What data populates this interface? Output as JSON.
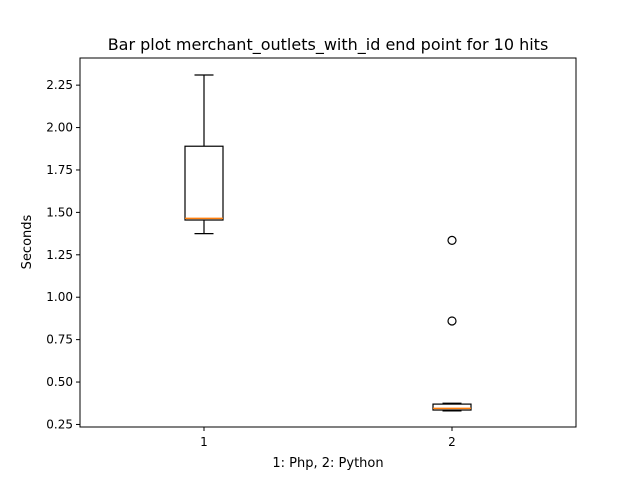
{
  "chart_data": {
    "type": "box",
    "title": "Bar plot merchant_outlets_with_id end point for 10 hits",
    "xlabel": "1: Php, 2: Python",
    "ylabel": "Seconds",
    "ylim": [
      0.235,
      2.41
    ],
    "xlim": [
      0.5,
      2.5
    ],
    "yticks": [
      0.25,
      0.5,
      0.75,
      1.0,
      1.25,
      1.5,
      1.75,
      2.0,
      2.25
    ],
    "ytick_labels": [
      "0.25",
      "0.50",
      "0.75",
      "1.00",
      "1.25",
      "1.50",
      "1.75",
      "2.00",
      "2.25"
    ],
    "categories": [
      "1",
      "2"
    ],
    "boxes": [
      {
        "position": 1,
        "whisker_low": 1.375,
        "q1": 1.455,
        "median": 1.465,
        "q3": 1.89,
        "whisker_high": 2.31,
        "outliers": []
      },
      {
        "position": 2,
        "whisker_low": 0.33,
        "q1": 0.335,
        "median": 0.345,
        "q3": 0.37,
        "whisker_high": 0.375,
        "outliers": [
          0.86,
          1.335
        ]
      }
    ],
    "grid": false,
    "colors": {
      "box": "#000000",
      "median": "#ff7f0e",
      "outlier": "#000000"
    }
  }
}
